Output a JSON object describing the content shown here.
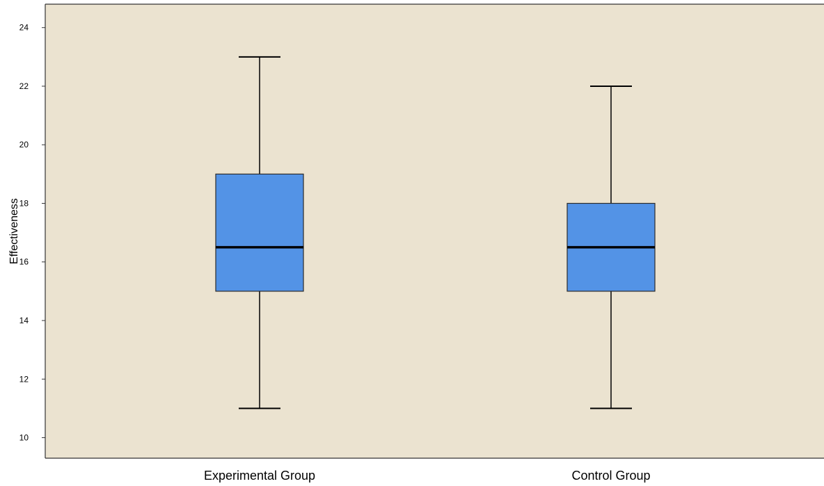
{
  "chart_data": {
    "type": "boxplot",
    "title": "",
    "xlabel": "",
    "ylabel": "Effectiveness",
    "ylim": [
      9.3,
      24.8
    ],
    "yticks": [
      10,
      12,
      14,
      16,
      18,
      20,
      22,
      24
    ],
    "grid": false,
    "categories": [
      "Experimental Group",
      "Control Group"
    ],
    "boxes": [
      {
        "category": "Experimental Group",
        "min": 11,
        "q1": 15,
        "median": 16.5,
        "q3": 19,
        "max": 23
      },
      {
        "category": "Control Group",
        "min": 11,
        "q1": 15,
        "median": 16.5,
        "q3": 18,
        "max": 22
      }
    ],
    "colors": {
      "plot_background": "#ebe3d0",
      "box_fill": "#5393e6",
      "box_stroke": "#2b2b2b",
      "median": "#000000",
      "whisker": "#000000",
      "axis": "#333333",
      "text": "#000000"
    }
  }
}
